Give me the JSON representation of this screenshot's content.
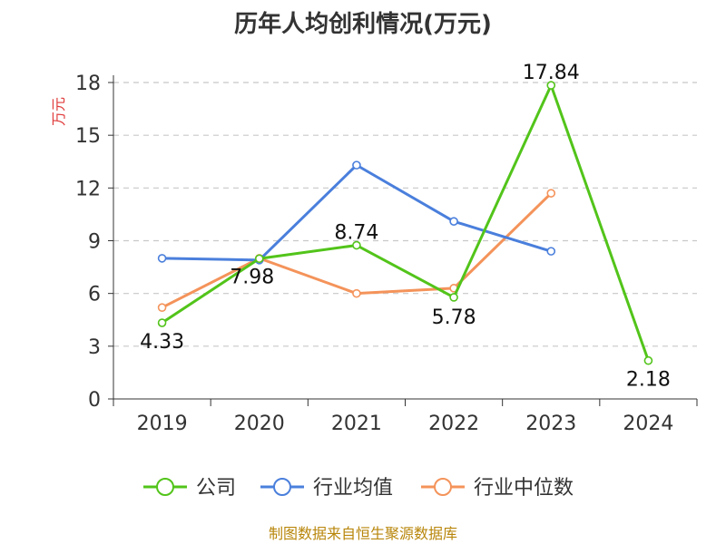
{
  "chart_data": {
    "type": "line",
    "title": "历年人均创利情况(万元)",
    "ylabel": "万元",
    "xlabel": "",
    "categories": [
      "2019",
      "2020",
      "2021",
      "2022",
      "2023",
      "2024"
    ],
    "ylim": [
      0,
      18
    ],
    "yticks": [
      0,
      3,
      6,
      9,
      12,
      15,
      18
    ],
    "grid": true,
    "legend_position": "bottom-center",
    "series": [
      {
        "name": "公司",
        "color": "#52c41a",
        "values": [
          4.33,
          7.98,
          8.74,
          5.78,
          17.84,
          2.18
        ],
        "labels": [
          "4.33",
          "7.98",
          "8.74",
          "5.78",
          "17.84",
          "2.18"
        ]
      },
      {
        "name": "行业均值",
        "color": "#4a7fdc",
        "values": [
          8.0,
          7.9,
          13.3,
          10.1,
          8.4,
          null
        ]
      },
      {
        "name": "行业中位数",
        "color": "#f4935a",
        "values": [
          5.2,
          8.0,
          6.0,
          6.3,
          11.7,
          null
        ]
      }
    ]
  },
  "source": "制图数据来自恒生聚源数据库"
}
